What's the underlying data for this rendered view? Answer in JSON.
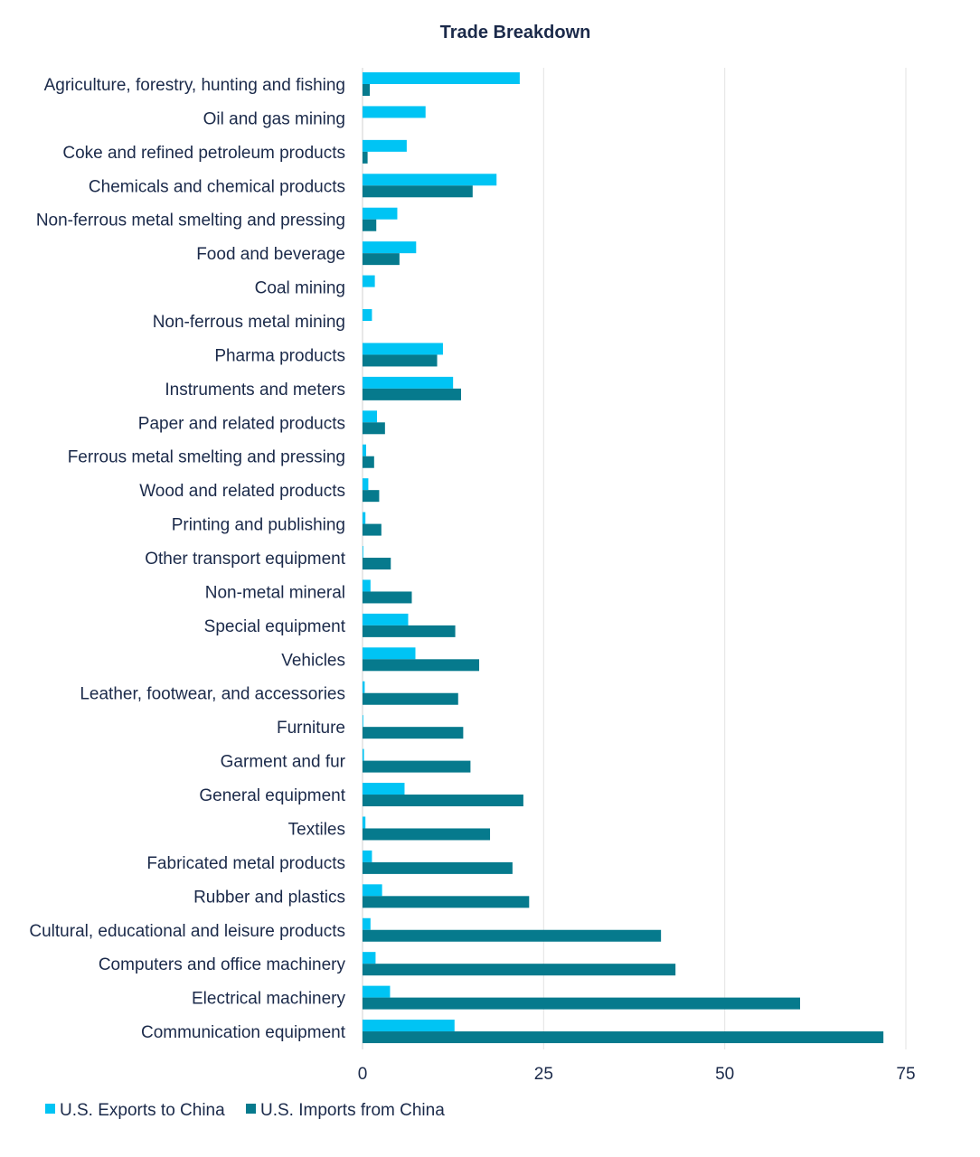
{
  "chart_data": {
    "type": "bar",
    "orientation": "horizontal",
    "title": "Trade Breakdown",
    "xlabel": "",
    "ylabel": "",
    "xlim": [
      0,
      75
    ],
    "xticks": [
      "0",
      "25",
      "50",
      "75"
    ],
    "grid": true,
    "legend_position": "bottom-left",
    "categories": [
      "Agriculture, forestry, hunting and fishing",
      "Oil and gas mining",
      "Coke and refined petroleum products",
      "Chemicals and chemical products",
      "Non-ferrous metal smelting and pressing",
      "Food and beverage",
      "Coal mining",
      "Non-ferrous metal mining",
      "Pharma products",
      "Instruments and meters",
      "Paper and related products",
      "Ferrous metal smelting and pressing",
      "Wood and related products",
      "Printing and publishing",
      "Other transport equipment",
      "Non-metal mineral",
      "Special equipment",
      "Vehicles",
      "Leather, footwear, and accessories",
      "Furniture",
      "Garment and fur",
      "General equipment",
      "Textiles",
      "Fabricated metal products",
      "Rubber and plastics",
      "Cultural, educational and leisure products",
      "Computers and office machinery",
      "Electrical machinery",
      "Communication equipment"
    ],
    "series": [
      {
        "name": "U.S. Exports to China",
        "color": "#00c4f4",
        "values": [
          21.7,
          8.7,
          6.1,
          18.5,
          4.8,
          7.4,
          1.7,
          1.3,
          11.1,
          12.5,
          2.0,
          0.5,
          0.8,
          0.4,
          0.1,
          1.1,
          6.3,
          7.3,
          0.3,
          0.1,
          0.2,
          5.8,
          0.4,
          1.3,
          2.7,
          1.1,
          1.8,
          3.8,
          12.7
        ]
      },
      {
        "name": "U.S. Imports from China",
        "color": "#067a8d",
        "values": [
          1.0,
          0.0,
          0.7,
          15.2,
          1.9,
          5.1,
          0.0,
          0.0,
          10.3,
          13.6,
          3.1,
          1.6,
          2.3,
          2.6,
          3.9,
          6.8,
          12.8,
          16.1,
          13.2,
          13.9,
          14.9,
          22.2,
          17.6,
          20.7,
          23.0,
          41.2,
          43.2,
          60.4,
          71.9
        ]
      }
    ]
  }
}
